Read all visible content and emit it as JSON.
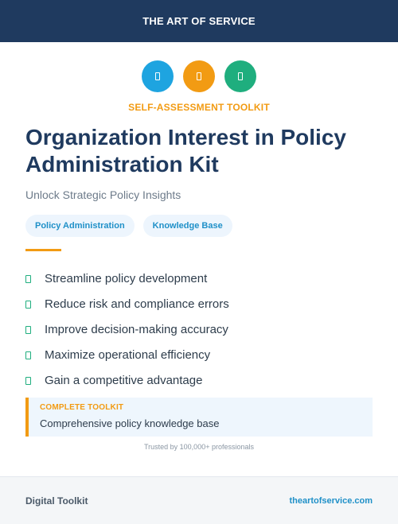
{
  "header": {
    "brand": "THE ART OF SERVICE"
  },
  "icons": [
    {
      "name": "document-icon",
      "color": "#1ea4e0"
    },
    {
      "name": "document-icon",
      "color": "#f29b13"
    },
    {
      "name": "document-icon",
      "color": "#1fae7e"
    }
  ],
  "kicker": "SELF-ASSESSMENT TOOLKIT",
  "title": "Organization Interest in Policy Administration Kit",
  "subtitle": "Unlock Strategic Policy Insights",
  "tags": [
    "Policy Administration",
    "Knowledge Base"
  ],
  "features": [
    "Streamline policy development",
    "Reduce risk and compliance errors",
    "Improve decision-making accuracy",
    "Maximize operational efficiency",
    "Gain a competitive advantage"
  ],
  "callout": {
    "label": "COMPLETE TOOLKIT",
    "text": "Comprehensive policy knowledge base"
  },
  "trusted": "Trusted by 100,000+ professionals",
  "footer": {
    "left": "Digital Toolkit",
    "right": "theartofservice.com"
  },
  "colors": {
    "navy": "#1f3a5f",
    "accent_orange": "#f29b13",
    "accent_blue": "#1ea4e0",
    "accent_green": "#1fae7e"
  }
}
